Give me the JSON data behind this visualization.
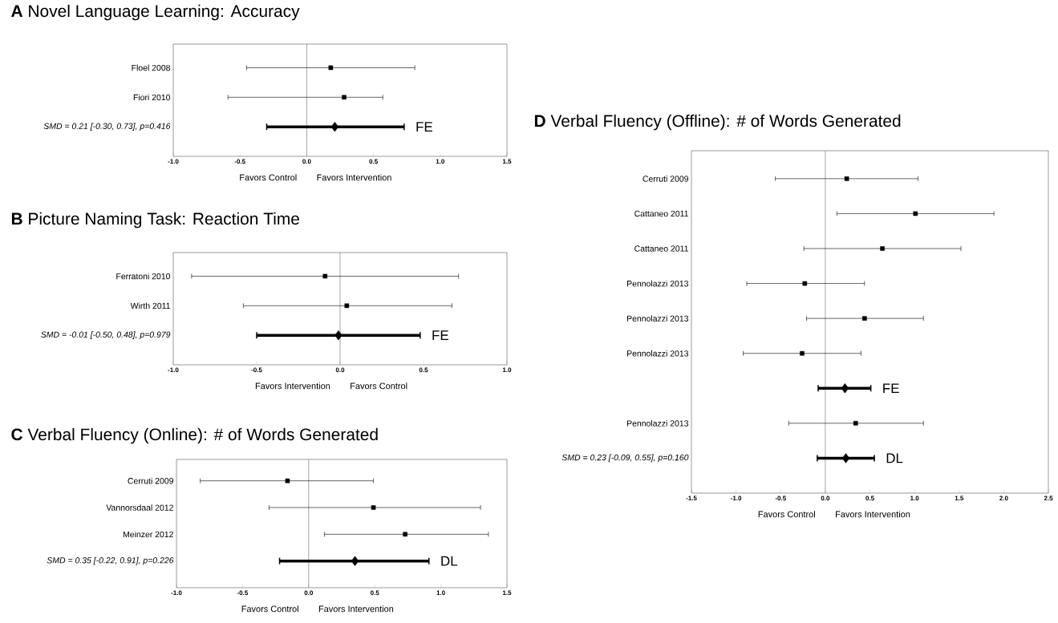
{
  "chart_data": [
    {
      "type": "scatter",
      "orientation": "horizontal",
      "title": "**A** Novel Language Learning: Accuracy",
      "categories": [
        "Floel 2008",
        "Fiori 2010",
        "SMD = 0.21 [-0.30, 0.73], p=0.416"
      ],
      "series": [
        {
          "type": "scatter",
          "marker": "square",
          "color": "#000000",
          "values": [
            0.18,
            0.28,
            null
          ],
          "errors": [
            [
              -0.45,
              0.81
            ],
            [
              -0.59,
              0.57
            ],
            null
          ]
        },
        {
          "type": "scatter",
          "marker": "diamond",
          "color": "#000000",
          "values": [
            null,
            null,
            0.21
          ],
          "errors": [
            null,
            null,
            [
              -0.3,
              0.73
            ]
          ]
        }
      ],
      "xlim": [
        -1.0,
        1.5
      ],
      "xticks": [
        {
          "value": -1.0,
          "label": "-1.0"
        },
        {
          "value": -0.5,
          "label": "-0.5"
        },
        {
          "value": 0,
          "label": "0.0"
        },
        {
          "value": 0.5,
          "label": "0.5"
        },
        {
          "value": 1.0,
          "label": "1.0"
        },
        {
          "value": 1.5,
          "label": "1.5"
        }
      ],
      "ref_lines": [
        {
          "axis": "x",
          "value": 0,
          "color": "#808080"
        }
      ],
      "annotations": [
        "Favors Control",
        "Favors Intervention",
        "FE"
      ]
    },
    {
      "type": "scatter",
      "orientation": "horizontal",
      "title": "**B** Picture Naming Task: Reaction Time",
      "categories": [
        "Ferratoni 2010",
        "Wirth 2011",
        "SMD = -0.01 [-0.50, 0.48], p=0.979"
      ],
      "series": [
        {
          "type": "scatter",
          "marker": "square",
          "color": "#000000",
          "values": [
            -0.09,
            0.04,
            null
          ],
          "errors": [
            [
              -0.89,
              0.71
            ],
            [
              -0.58,
              0.67
            ],
            null
          ]
        },
        {
          "type": "scatter",
          "marker": "diamond",
          "color": "#000000",
          "values": [
            null,
            null,
            -0.01
          ],
          "errors": [
            null,
            null,
            [
              -0.5,
              0.48
            ]
          ]
        }
      ],
      "xlim": [
        -1.0,
        1.0
      ],
      "xticks": [
        {
          "value": -1.0,
          "label": "-1.0"
        },
        {
          "value": -0.5,
          "label": "-0.5"
        },
        {
          "value": 0,
          "label": "0.0"
        },
        {
          "value": 0.5,
          "label": "0.5"
        },
        {
          "value": 1.0,
          "label": "1.0"
        }
      ],
      "ref_lines": [
        {
          "axis": "x",
          "value": 0,
          "color": "#808080"
        }
      ],
      "annotations": [
        "Favors Intervention",
        "Favors Control",
        "FE"
      ]
    },
    {
      "type": "scatter",
      "orientation": "horizontal",
      "title": "**C** Verbal Fluency (Online): # of Words Generated",
      "categories": [
        "Cerruti 2009",
        "Vannorsdaal 2012",
        "Meinzer 2012",
        "SMD = 0.35 [-0.22, 0.91], p=0.226"
      ],
      "series": [
        {
          "type": "scatter",
          "marker": "square",
          "color": "#000000",
          "values": [
            -0.16,
            0.49,
            0.73,
            null
          ],
          "errors": [
            [
              -0.82,
              0.49
            ],
            [
              -0.3,
              1.3
            ],
            [
              0.12,
              1.36
            ],
            null
          ]
        },
        {
          "type": "scatter",
          "marker": "diamond",
          "color": "#000000",
          "values": [
            null,
            null,
            null,
            0.35
          ],
          "errors": [
            null,
            null,
            null,
            [
              -0.22,
              0.91
            ]
          ]
        }
      ],
      "xlim": [
        -1.0,
        1.5
      ],
      "xticks": [
        {
          "value": -1.0,
          "label": "-1.0"
        },
        {
          "value": -0.5,
          "label": "-0.5"
        },
        {
          "value": 0,
          "label": "0.0"
        },
        {
          "value": 0.5,
          "label": "0.5"
        },
        {
          "value": 1.0,
          "label": "1.0"
        },
        {
          "value": 1.5,
          "label": "1.5"
        }
      ],
      "ref_lines": [
        {
          "axis": "x",
          "value": 0,
          "color": "#808080"
        }
      ],
      "annotations": [
        "Favors Control",
        "Favors Intervention",
        "DL"
      ]
    },
    {
      "type": "scatter",
      "orientation": "horizontal",
      "title": "**D** Verbal Fluency (Offline): # of Words Generated",
      "categories": [
        "Cerruti 2009",
        "Cattaneo 2011",
        "Cattaneo 2011",
        "Pennolazzi 2013",
        "Pennolazzi 2013",
        "Pennolazzi 2013",
        null,
        "Pennolazzi 2013",
        "SMD = 0.23 [-0.09, 0.55], p=0.160"
      ],
      "series": [
        {
          "type": "scatter",
          "marker": "square",
          "color": "#000000",
          "values": [
            0.24,
            1.01,
            0.64,
            -0.23,
            0.44,
            -0.26,
            null,
            0.34,
            null
          ],
          "errors": [
            [
              -0.56,
              1.04
            ],
            [
              0.13,
              1.89
            ],
            [
              -0.24,
              1.52
            ],
            [
              -0.88,
              0.44
            ],
            [
              -0.21,
              1.1
            ],
            [
              -0.92,
              0.4
            ],
            null,
            [
              -0.41,
              1.1
            ],
            null
          ]
        },
        {
          "type": "scatter",
          "marker": "diamond",
          "color": "#000000",
          "values": [
            null,
            null,
            null,
            null,
            null,
            null,
            0.22,
            null,
            0.23
          ],
          "errors": [
            null,
            null,
            null,
            null,
            null,
            null,
            [
              -0.08,
              0.51
            ],
            null,
            [
              -0.09,
              0.55
            ]
          ]
        }
      ],
      "xlim": [
        -1.5,
        2.5
      ],
      "xticks": [
        {
          "value": -1.5,
          "label": "-1.5"
        },
        {
          "value": -1.0,
          "label": "-1.0"
        },
        {
          "value": -0.5,
          "label": "-0.5"
        },
        {
          "value": 0,
          "label": "0.0"
        },
        {
          "value": 0.5,
          "label": "0.5"
        },
        {
          "value": 1.0,
          "label": "1.0"
        },
        {
          "value": 1.5,
          "label": "1.5"
        },
        {
          "value": 2.0,
          "label": "2.0"
        },
        {
          "value": 2.5,
          "label": "2.5"
        }
      ],
      "ref_lines": [
        {
          "axis": "x",
          "value": 0,
          "color": "#808080"
        }
      ],
      "annotations": [
        "Favors Control",
        "Favors Intervention",
        "FE",
        "DL"
      ]
    }
  ]
}
